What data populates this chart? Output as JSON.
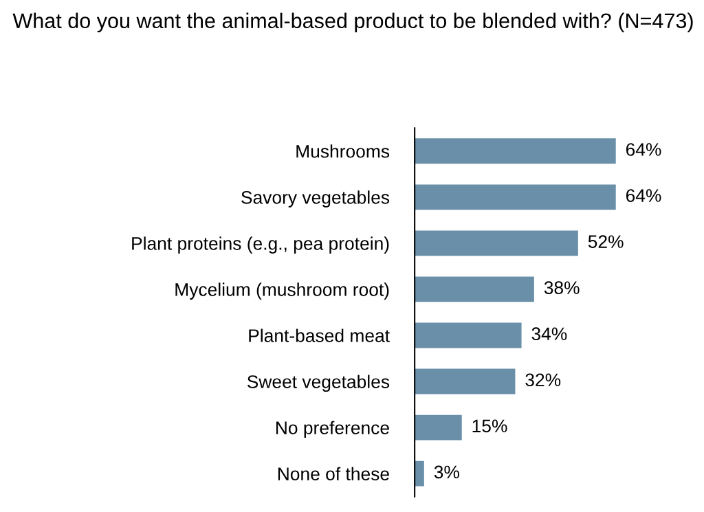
{
  "chart_data": {
    "type": "bar",
    "orientation": "horizontal",
    "title": "What do you want the animal-based product to be blended with? (N=473)",
    "categories": [
      "Mushrooms",
      "Savory vegetables",
      "Plant proteins (e.g., pea protein)",
      "Mycelium (mushroom root)",
      "Plant-based meat",
      "Sweet vegetables",
      "No preference",
      "None of these"
    ],
    "values": [
      64,
      64,
      52,
      38,
      34,
      32,
      15,
      3
    ],
    "value_labels": [
      "64%",
      "64%",
      "52%",
      "38%",
      "34%",
      "32%",
      "15%",
      "3%"
    ],
    "color": "#6a8fa9",
    "grid": false,
    "legend": false
  }
}
